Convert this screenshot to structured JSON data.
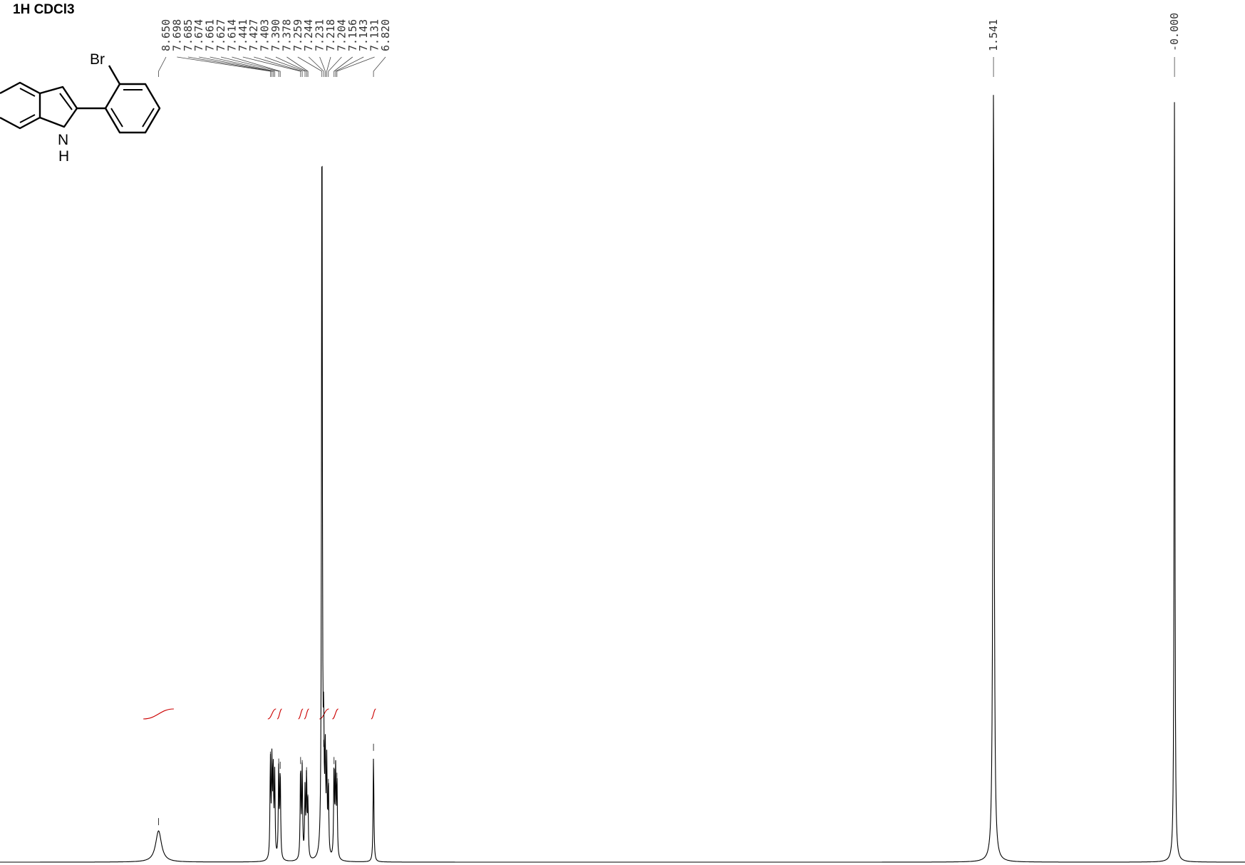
{
  "title": "1H CDCl3",
  "structure": {
    "atoms": {
      "br": "Br",
      "n": "N",
      "h": "H"
    }
  },
  "chart_data": {
    "type": "line",
    "title": "1H CDCl3",
    "xlabel": "",
    "xlim": [
      10.0,
      -0.6
    ],
    "x_ticks": [],
    "peak_labels": [
      "8.650",
      "7.698",
      "7.685",
      "7.674",
      "7.661",
      "7.627",
      "7.614",
      "7.441",
      "7.427",
      "7.403",
      "7.390",
      "7.378",
      "7.259",
      "7.244",
      "7.231",
      "7.218",
      "7.204",
      "7.156",
      "7.143",
      "7.131",
      "6.820",
      "1.541",
      "-0.000"
    ],
    "peaks": [
      {
        "ppm": 8.65,
        "height": 0.04,
        "width": 0.03
      },
      {
        "ppm": 7.698,
        "height": 0.125,
        "width": 0.004
      },
      {
        "ppm": 7.685,
        "height": 0.118,
        "width": 0.004
      },
      {
        "ppm": 7.674,
        "height": 0.11,
        "width": 0.004
      },
      {
        "ppm": 7.661,
        "height": 0.105,
        "width": 0.004
      },
      {
        "ppm": 7.627,
        "height": 0.116,
        "width": 0.004
      },
      {
        "ppm": 7.614,
        "height": 0.112,
        "width": 0.004
      },
      {
        "ppm": 7.441,
        "height": 0.118,
        "width": 0.004
      },
      {
        "ppm": 7.427,
        "height": 0.114,
        "width": 0.004
      },
      {
        "ppm": 7.403,
        "height": 0.086,
        "width": 0.004
      },
      {
        "ppm": 7.39,
        "height": 0.105,
        "width": 0.004
      },
      {
        "ppm": 7.378,
        "height": 0.07,
        "width": 0.004
      },
      {
        "ppm": 7.259,
        "height": 1.0,
        "width": 0.004
      },
      {
        "ppm": 7.244,
        "height": 0.14,
        "width": 0.004
      },
      {
        "ppm": 7.231,
        "height": 0.125,
        "width": 0.004
      },
      {
        "ppm": 7.218,
        "height": 0.112,
        "width": 0.004
      },
      {
        "ppm": 7.204,
        "height": 0.09,
        "width": 0.004
      },
      {
        "ppm": 7.156,
        "height": 0.118,
        "width": 0.004
      },
      {
        "ppm": 7.143,
        "height": 0.112,
        "width": 0.004
      },
      {
        "ppm": 7.131,
        "height": 0.098,
        "width": 0.004
      },
      {
        "ppm": 6.82,
        "height": 0.135,
        "width": 0.004
      },
      {
        "ppm": 1.541,
        "height": 1.0,
        "width": 0.006
      },
      {
        "ppm": 0.0,
        "height": 1.0,
        "width": 0.004
      }
    ],
    "integrals": [
      {
        "from": 8.78,
        "to": 8.52,
        "value": ""
      },
      {
        "from": 7.72,
        "to": 7.65,
        "value": ""
      },
      {
        "from": 7.64,
        "to": 7.6,
        "value": ""
      },
      {
        "from": 7.46,
        "to": 7.42,
        "value": ""
      },
      {
        "from": 7.41,
        "to": 7.37,
        "value": ""
      },
      {
        "from": 7.28,
        "to": 7.2,
        "value": ""
      },
      {
        "from": 7.17,
        "to": 7.12,
        "value": ""
      },
      {
        "from": 6.84,
        "to": 6.8,
        "value": ""
      }
    ]
  },
  "colors": {
    "spectrum": "#000000",
    "integral": "#cc0000",
    "label_lines": "#444444"
  }
}
